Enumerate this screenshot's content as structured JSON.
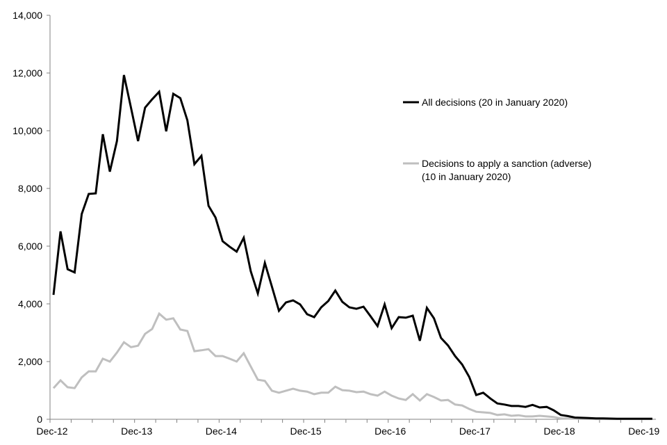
{
  "chart_data": {
    "type": "line",
    "title": "",
    "xlabel": "",
    "ylabel": "",
    "ylim": [
      0,
      14000
    ],
    "grid": false,
    "legend_placement": "right",
    "ytick_labels": [
      "0",
      "2,000",
      "4,000",
      "6,000",
      "8,000",
      "10,000",
      "12,000",
      "14,000"
    ],
    "ytick_values": [
      0,
      2000,
      4000,
      6000,
      8000,
      10000,
      12000,
      14000
    ],
    "xtick_labels": [
      "Dec-12",
      "Dec-13",
      "Dec-14",
      "Dec-15",
      "Dec-16",
      "Dec-17",
      "Dec-18",
      "Dec-19"
    ],
    "x_start": "Dec-12",
    "x_end": "Jan-20",
    "x_frequency": "monthly",
    "series": [
      {
        "name": "All decisions (20 in January 2020)",
        "color": "#000000",
        "values": [
          4310,
          6510,
          5200,
          5090,
          7110,
          7810,
          7830,
          9880,
          8580,
          9640,
          11930,
          10800,
          9640,
          10800,
          11090,
          11350,
          9980,
          11280,
          11130,
          10360,
          8840,
          9130,
          7400,
          6990,
          6170,
          5980,
          5810,
          6290,
          5130,
          4360,
          5420,
          4600,
          3760,
          4050,
          4120,
          3980,
          3640,
          3540,
          3880,
          4100,
          4460,
          4070,
          3880,
          3830,
          3900,
          3570,
          3230,
          3980,
          3160,
          3540,
          3520,
          3590,
          2720,
          3860,
          3500,
          2820,
          2560,
          2190,
          1900,
          1470,
          840,
          920,
          720,
          550,
          510,
          460,
          460,
          430,
          500,
          410,
          430,
          310,
          150,
          110,
          60,
          50,
          40,
          30,
          30,
          25,
          20,
          20,
          20,
          20,
          20,
          20
        ]
      },
      {
        "name": "Decisions to apply a sanction (adverse)",
        "name_line2": "(10 in January 2020)",
        "color": "#bfbfbf",
        "values": [
          1080,
          1350,
          1110,
          1080,
          1450,
          1660,
          1660,
          2100,
          2000,
          2310,
          2670,
          2500,
          2550,
          2960,
          3130,
          3660,
          3450,
          3500,
          3110,
          3060,
          2360,
          2390,
          2430,
          2190,
          2190,
          2100,
          2000,
          2290,
          1830,
          1370,
          1330,
          990,
          920,
          990,
          1060,
          990,
          960,
          870,
          920,
          920,
          1130,
          1010,
          990,
          940,
          960,
          870,
          820,
          960,
          820,
          720,
          670,
          870,
          650,
          870,
          770,
          650,
          670,
          510,
          480,
          360,
          260,
          240,
          220,
          150,
          170,
          120,
          140,
          100,
          100,
          120,
          100,
          80,
          30,
          25,
          20,
          15,
          15,
          10,
          10,
          10,
          10,
          10,
          10,
          10,
          10,
          10
        ]
      }
    ]
  }
}
